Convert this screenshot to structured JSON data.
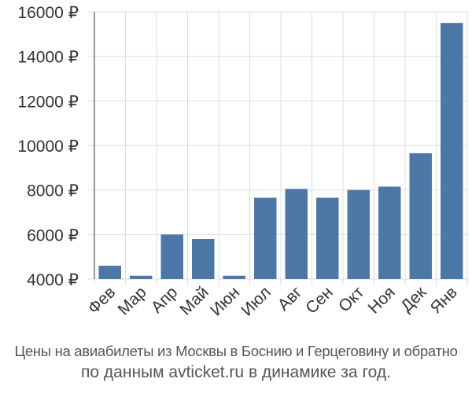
{
  "chart_data": {
    "type": "bar",
    "categories": [
      "Фев",
      "Мар",
      "Апр",
      "Май",
      "Июн",
      "Июл",
      "Авг",
      "Сен",
      "Окт",
      "Ноя",
      "Дек",
      "Янв"
    ],
    "values": [
      4600,
      4150,
      6000,
      5800,
      4150,
      7650,
      8050,
      7650,
      8000,
      8150,
      9650,
      15500
    ],
    "ylim": [
      4000,
      16000
    ],
    "yticks": [
      4000,
      6000,
      8000,
      10000,
      12000,
      14000,
      16000
    ],
    "ytick_labels": [
      "4000 ₽",
      "6000 ₽",
      "8000 ₽",
      "10000 ₽",
      "12000 ₽",
      "14000 ₽",
      "16000 ₽"
    ],
    "grid": true,
    "bar_color": "#4c78a8",
    "grid_color": "#dddddd",
    "title": "Цены на авиабилеты из Москвы в Боснию и Герцеговину и обратно",
    "subtitle": "по данным avticket.ru в динамике за год."
  }
}
